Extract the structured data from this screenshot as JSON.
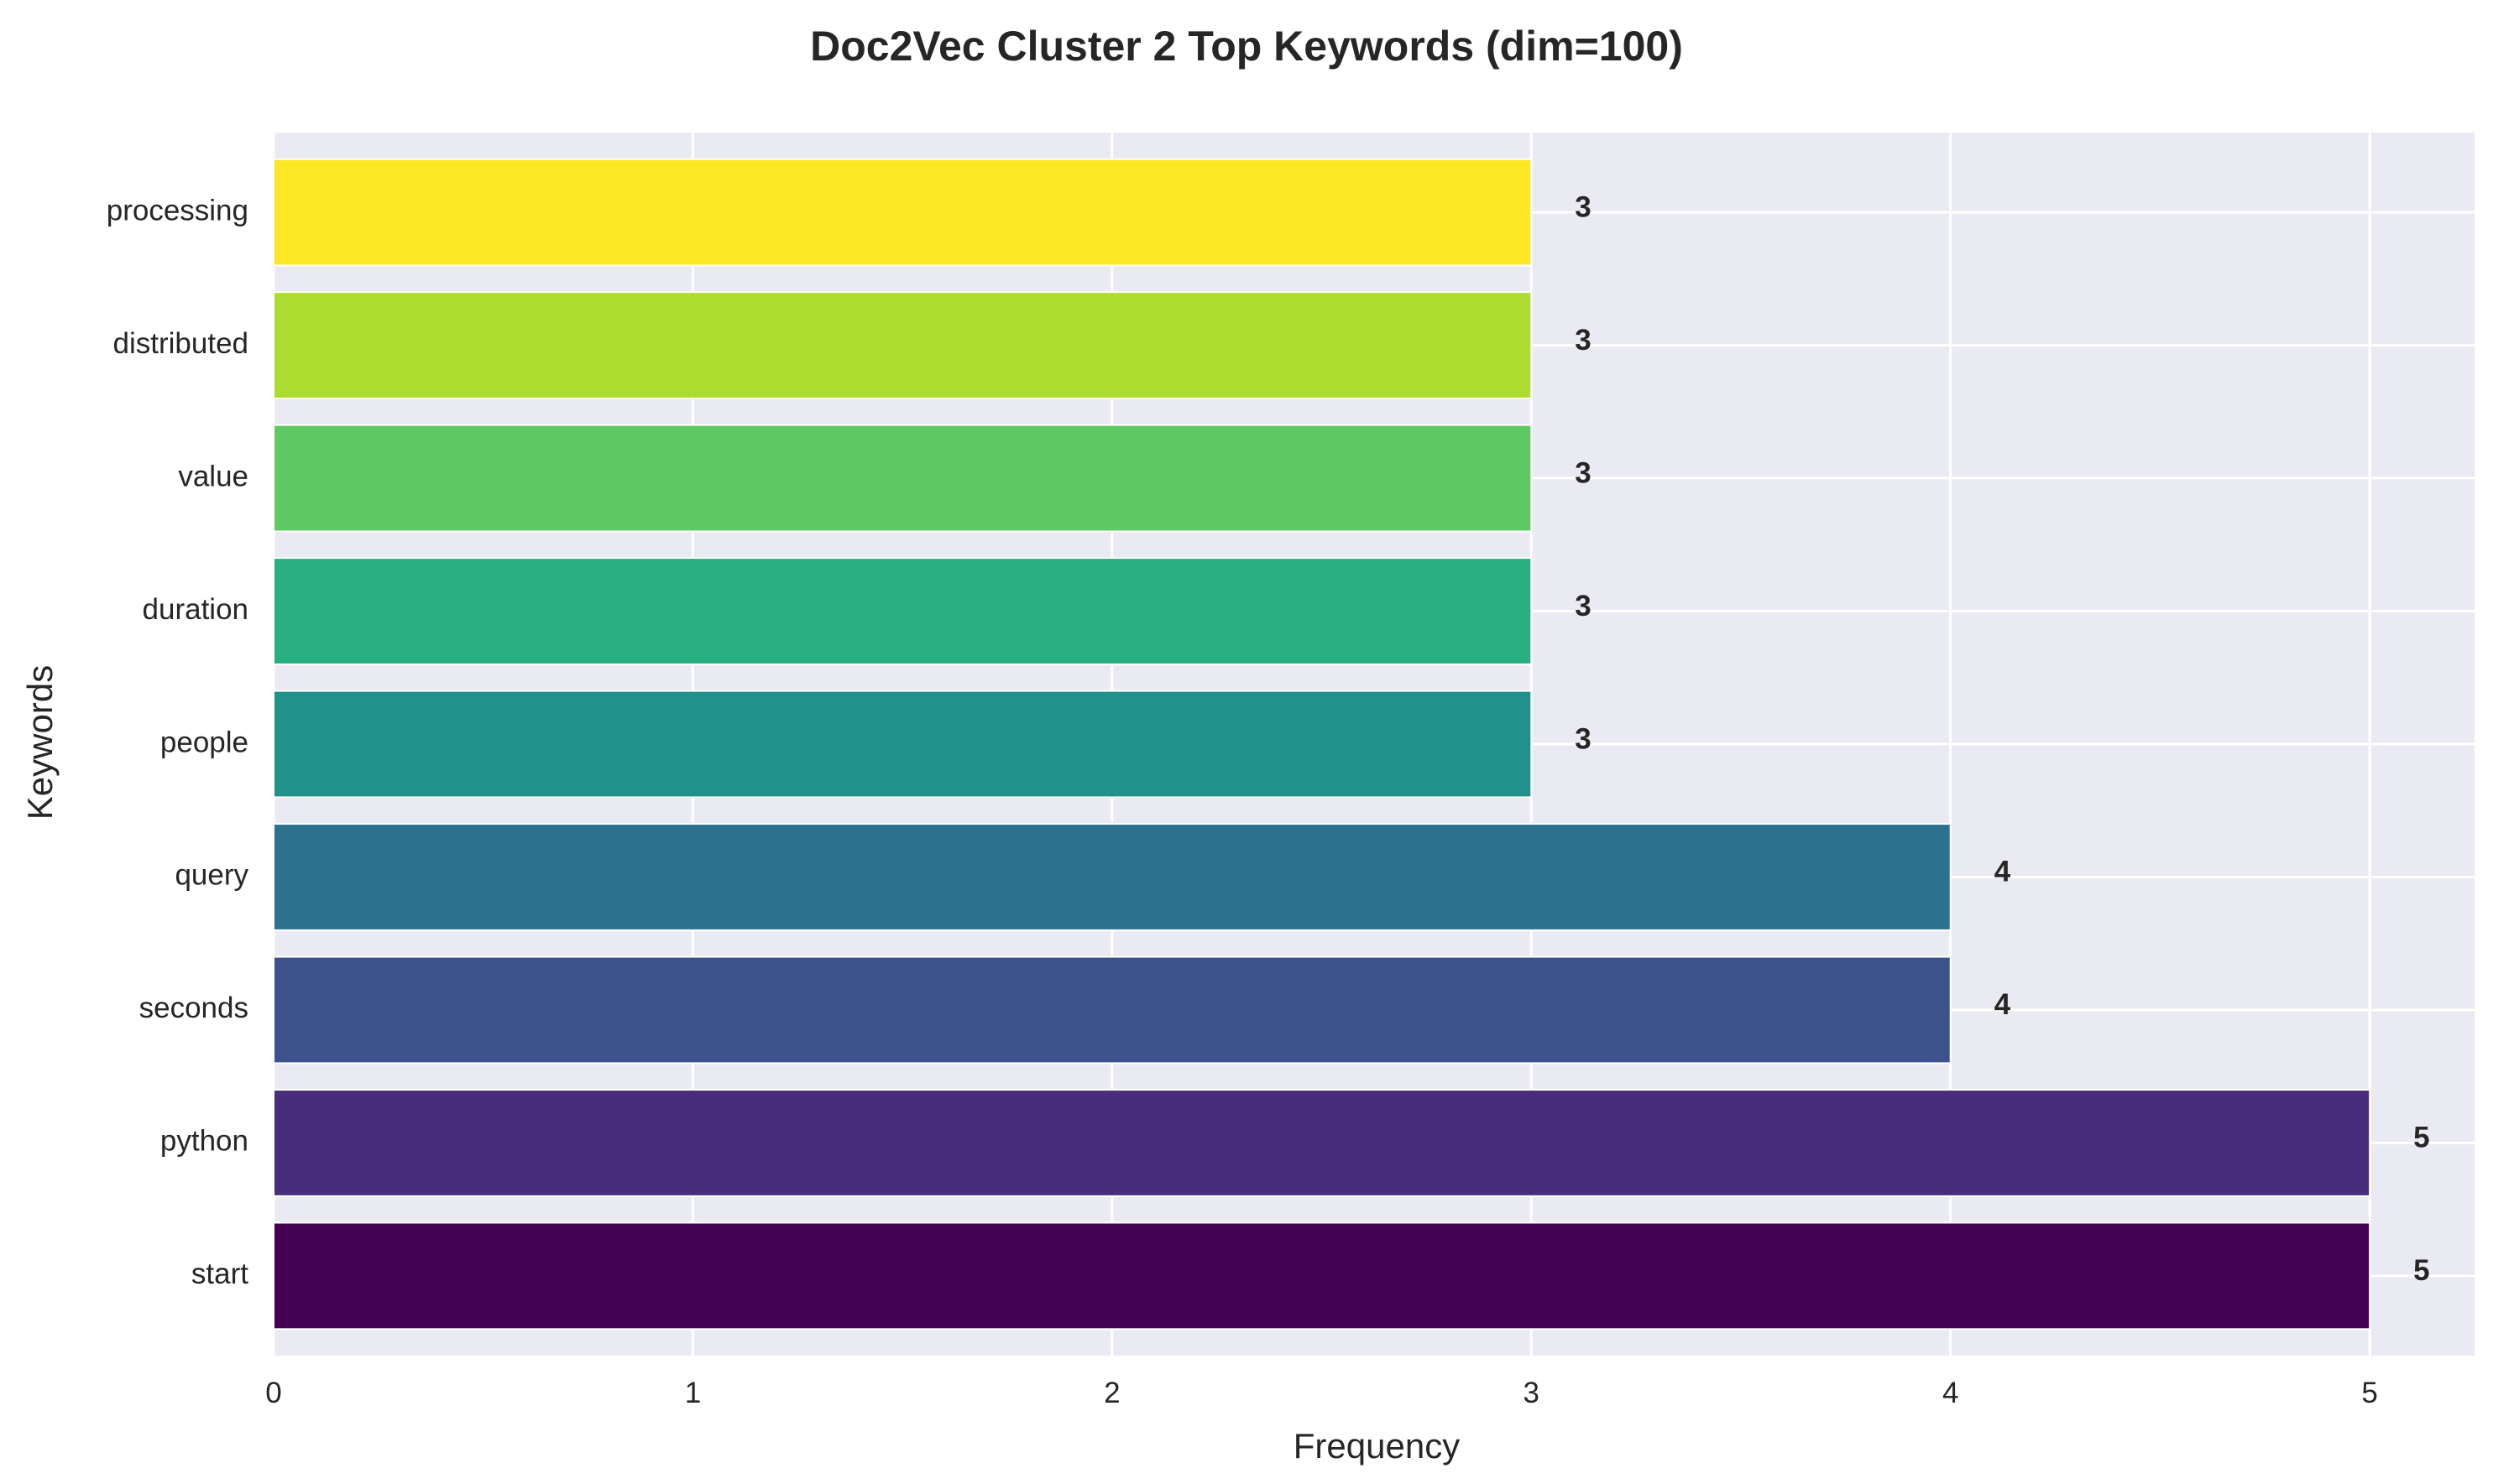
{
  "chart_data": {
    "type": "bar",
    "orientation": "horizontal",
    "title": "Doc2Vec Cluster 2 Top Keywords (dim=100)",
    "xlabel": "Frequency",
    "ylabel": "Keywords",
    "categories": [
      "start",
      "python",
      "seconds",
      "query",
      "people",
      "duration",
      "value",
      "distributed",
      "processing"
    ],
    "values": [
      5,
      5,
      4,
      4,
      3,
      3,
      3,
      3,
      3
    ],
    "colors": [
      "#440154",
      "#472d7b",
      "#3b528b",
      "#2c728e",
      "#21918c",
      "#28ae80",
      "#5ec962",
      "#addc30",
      "#fde725"
    ],
    "data_labels": [
      "5",
      "5",
      "4",
      "4",
      "3",
      "3",
      "3",
      "3",
      "3"
    ],
    "x_ticks": [
      "0",
      "1",
      "2",
      "3",
      "4",
      "5"
    ],
    "xlim": [
      0,
      5.25
    ],
    "grid": true,
    "background": "#eaeaf2",
    "grid_color": "#ffffff"
  }
}
